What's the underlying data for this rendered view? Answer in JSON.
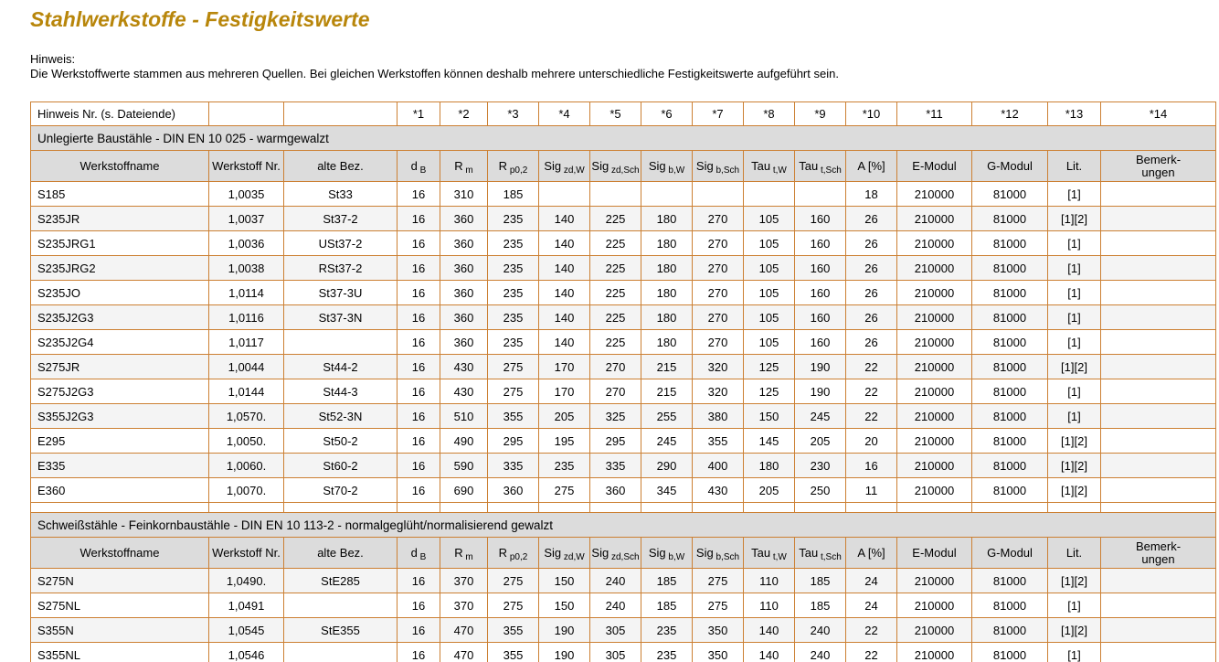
{
  "page": {
    "title": "Stahlwerkstoffe - Festigkeitswerte",
    "hinweis_label": "Hinweis:",
    "hinweis_text": "Die Werkstoffwerte stammen aus mehreren Quellen. Bei gleichen Werkstoffen können deshalb mehrere unterschiedliche Festigkeitswerte aufgeführt sein."
  },
  "colors": {
    "title": "#B8860B",
    "table_border": "#CC8033",
    "header_bg": "#DCDCDC",
    "row_alt_bg": "#F4F4F4"
  },
  "hint_row": {
    "label": "Hinweis Nr. (s. Dateiende)",
    "refs": [
      "*1",
      "*2",
      "*3",
      "*4",
      "*5",
      "*6",
      "*7",
      "*8",
      "*9",
      "*10",
      "*11",
      "*12",
      "*13",
      "*14"
    ]
  },
  "columns": [
    {
      "label": "Werkstoffname"
    },
    {
      "label": "Werkstoff Nr."
    },
    {
      "label": "alte Bez."
    },
    {
      "label": "d",
      "sub": "B"
    },
    {
      "label": "R",
      "sub": "m"
    },
    {
      "label": "R",
      "sub": "p0,2"
    },
    {
      "label": "Sig",
      "sub": "zd,W"
    },
    {
      "label": "Sig",
      "sub": "zd,Sch"
    },
    {
      "label": "Sig",
      "sub": "b,W"
    },
    {
      "label": "Sig",
      "sub": "b,Sch"
    },
    {
      "label": "Tau",
      "sub": "t,W"
    },
    {
      "label": "Tau",
      "sub": "t,Sch"
    },
    {
      "label": "A [%]"
    },
    {
      "label": "E-Modul"
    },
    {
      "label": "G-Modul"
    },
    {
      "label": "Lit."
    },
    {
      "label": "Bemerk-",
      "line2": "ungen"
    }
  ],
  "sections": [
    {
      "title": "Unlegierte Baustähle - DIN EN 10 025 - warmgewalzt",
      "shade_offset": 0,
      "rows": [
        [
          "S185",
          "1,0035",
          "St33",
          "16",
          "310",
          "185",
          "",
          "",
          "",
          "",
          "",
          "",
          "18",
          "210000",
          "81000",
          "[1]",
          ""
        ],
        [
          "S235JR",
          "1,0037",
          "St37-2",
          "16",
          "360",
          "235",
          "140",
          "225",
          "180",
          "270",
          "105",
          "160",
          "26",
          "210000",
          "81000",
          "[1][2]",
          ""
        ],
        [
          "S235JRG1",
          "1,0036",
          "USt37-2",
          "16",
          "360",
          "235",
          "140",
          "225",
          "180",
          "270",
          "105",
          "160",
          "26",
          "210000",
          "81000",
          "[1]",
          ""
        ],
        [
          "S235JRG2",
          "1,0038",
          "RSt37-2",
          "16",
          "360",
          "235",
          "140",
          "225",
          "180",
          "270",
          "105",
          "160",
          "26",
          "210000",
          "81000",
          "[1]",
          ""
        ],
        [
          "S235JO",
          "1,0114",
          "St37-3U",
          "16",
          "360",
          "235",
          "140",
          "225",
          "180",
          "270",
          "105",
          "160",
          "26",
          "210000",
          "81000",
          "[1]",
          ""
        ],
        [
          "S235J2G3",
          "1,0116",
          "St37-3N",
          "16",
          "360",
          "235",
          "140",
          "225",
          "180",
          "270",
          "105",
          "160",
          "26",
          "210000",
          "81000",
          "[1]",
          ""
        ],
        [
          "S235J2G4",
          "1,0117",
          "",
          "16",
          "360",
          "235",
          "140",
          "225",
          "180",
          "270",
          "105",
          "160",
          "26",
          "210000",
          "81000",
          "[1]",
          ""
        ],
        [
          "S275JR",
          "1,0044",
          "St44-2",
          "16",
          "430",
          "275",
          "170",
          "270",
          "215",
          "320",
          "125",
          "190",
          "22",
          "210000",
          "81000",
          "[1][2]",
          ""
        ],
        [
          "S275J2G3",
          "1,0144",
          "St44-3",
          "16",
          "430",
          "275",
          "170",
          "270",
          "215",
          "320",
          "125",
          "190",
          "22",
          "210000",
          "81000",
          "[1]",
          ""
        ],
        [
          "S355J2G3",
          "1,0570.",
          "St52-3N",
          "16",
          "510",
          "355",
          "205",
          "325",
          "255",
          "380",
          "150",
          "245",
          "22",
          "210000",
          "81000",
          "[1]",
          ""
        ],
        [
          "E295",
          "1,0050.",
          "St50-2",
          "16",
          "490",
          "295",
          "195",
          "295",
          "245",
          "355",
          "145",
          "205",
          "20",
          "210000",
          "81000",
          "[1][2]",
          ""
        ],
        [
          "E335",
          "1,0060.",
          "St60-2",
          "16",
          "590",
          "335",
          "235",
          "335",
          "290",
          "400",
          "180",
          "230",
          "16",
          "210000",
          "81000",
          "[1][2]",
          ""
        ],
        [
          "E360",
          "1,0070.",
          "St70-2",
          "16",
          "690",
          "360",
          "275",
          "360",
          "345",
          "430",
          "205",
          "250",
          "11",
          "210000",
          "81000",
          "[1][2]",
          ""
        ]
      ]
    },
    {
      "title": "Schweißstähle - Feinkornbaustähle - DIN EN 10 113-2 - normalgeglüht/normalisierend gewalzt",
      "shade_offset": 1,
      "rows": [
        [
          "S275N",
          "1,0490.",
          "StE285",
          "16",
          "370",
          "275",
          "150",
          "240",
          "185",
          "275",
          "110",
          "185",
          "24",
          "210000",
          "81000",
          "[1][2]",
          ""
        ],
        [
          "S275NL",
          "1,0491",
          "",
          "16",
          "370",
          "275",
          "150",
          "240",
          "185",
          "275",
          "110",
          "185",
          "24",
          "210000",
          "81000",
          "[1]",
          ""
        ],
        [
          "S355N",
          "1,0545",
          "StE355",
          "16",
          "470",
          "355",
          "190",
          "305",
          "235",
          "350",
          "140",
          "240",
          "22",
          "210000",
          "81000",
          "[1][2]",
          ""
        ],
        [
          "S355NL",
          "1,0546",
          "",
          "16",
          "470",
          "355",
          "190",
          "305",
          "235",
          "350",
          "140",
          "240",
          "22",
          "210000",
          "81000",
          "[1]",
          ""
        ]
      ]
    }
  ]
}
